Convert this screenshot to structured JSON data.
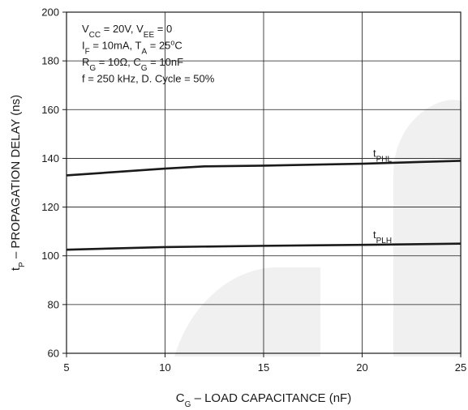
{
  "chart_data": {
    "type": "line",
    "xlabel": {
      "main": "C",
      "sub": "G",
      "rest": " – LOAD CAPACITANCE (nF)"
    },
    "ylabel": {
      "main": "t",
      "sub": "P",
      "rest": " – PROPAGATION DELAY (ns)"
    },
    "xlim": [
      5,
      25
    ],
    "ylim": [
      60,
      200
    ],
    "x_ticks": [
      5,
      10,
      15,
      20,
      25
    ],
    "y_ticks": [
      60,
      80,
      100,
      120,
      140,
      160,
      180,
      200
    ],
    "grid": true,
    "series": [
      {
        "label": {
          "main": "t",
          "sub": "PHL"
        },
        "x": [
          5,
          10,
          12,
          15,
          20,
          25
        ],
        "y": [
          133,
          135.8,
          136.7,
          137,
          137.8,
          139
        ]
      },
      {
        "label": {
          "main": "t",
          "sub": "PLH"
        },
        "x": [
          5,
          10,
          15,
          20,
          25
        ],
        "y": [
          102.5,
          103.6,
          104.1,
          104.5,
          105
        ]
      }
    ],
    "annotations": [
      [
        {
          "t": "V"
        },
        {
          "t": "CC",
          "s": true
        },
        {
          "t": " = 20V, V"
        },
        {
          "t": "EE",
          "s": true
        },
        {
          "t": " = 0"
        }
      ],
      [
        {
          "t": "I"
        },
        {
          "t": "F",
          "s": true
        },
        {
          "t": " = 10mA, T"
        },
        {
          "t": "A",
          "s": true
        },
        {
          "t": " = 25"
        },
        {
          "t": "o",
          "sup": true
        },
        {
          "t": "C"
        }
      ],
      [
        {
          "t": "R"
        },
        {
          "t": "G",
          "s": true
        },
        {
          "t": " = 10Ω, C"
        },
        {
          "t": "G",
          "s": true
        },
        {
          "t": " = 10nF"
        }
      ],
      [
        {
          "t": "f = 250 kHz, D. Cycle = 50%"
        }
      ]
    ],
    "colors": {
      "line": "#1a1a1a",
      "grid": "#1a1a1a",
      "frame": "#1a1a1a",
      "watermark": "#f0f0f0"
    }
  }
}
